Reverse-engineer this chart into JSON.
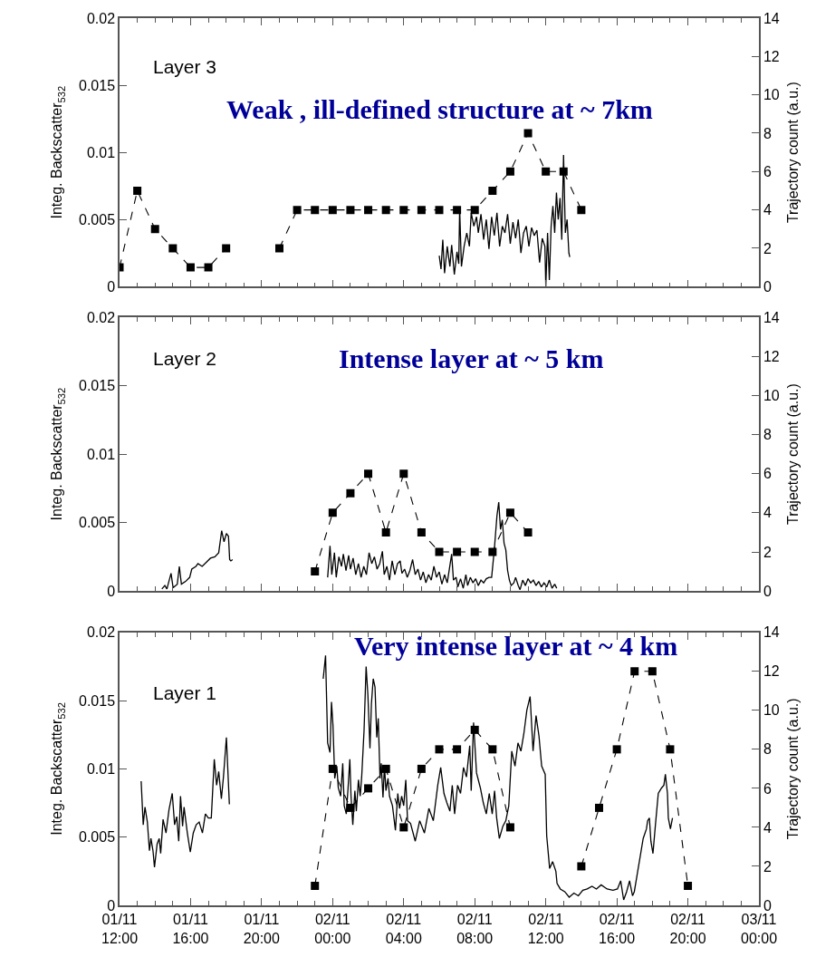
{
  "chart_data": [
    {
      "type": "line",
      "tick_labels": "y",
      "ylabel": "Integ. Backscatter$_{532}$",
      "y2label": "Trajectory count (a.u.)",
      "annotations": [
        "Layer 3",
        "Weak , ill-defined structure at ~ 7km"
      ],
      "xlim": [
        "--11-01T12:00",
        "--11-03T00:00"
      ],
      "xticks": [
        {
          "value": "--11-01T12:00",
          "label": "01/11\n12:00"
        },
        {
          "value": "--11-01T16:00",
          "label": "01/11\n16:00"
        },
        {
          "value": "--11-01T20:00",
          "label": "01/11\n20:00"
        },
        {
          "value": "--11-02T00:00",
          "label": "02/11\n00:00"
        },
        {
          "value": "--11-02T04:00",
          "label": "02/11\n04:00"
        },
        {
          "value": "--11-02T08:00",
          "label": "02/11\n08:00"
        },
        {
          "value": "--11-02T12:00",
          "label": "02/11\n12:00"
        },
        {
          "value": "--11-02T16:00",
          "label": "02/11\n16:00"
        },
        {
          "value": "--11-02T20:00",
          "label": "02/11\n20:00"
        },
        {
          "value": "--11-03T00:00",
          "label": "03/11\n00:00"
        }
      ],
      "ylim": [
        0,
        0.02
      ],
      "yticks": [
        0,
        0.005,
        0.01,
        0.015,
        0.02
      ],
      "y2lim": [
        0,
        14
      ],
      "y2ticks": [
        0,
        2,
        4,
        6,
        8,
        10,
        12,
        14
      ],
      "series": [
        {
          "type": "line",
          "color": "#000000",
          "marker": "none",
          "line_style": "solid",
          "x": [
            "--11-02T06:00",
            "--11-02T06:06",
            "--11-02T06:12",
            "--11-02T06:18",
            "--11-02T06:27",
            "--11-02T06:36",
            "--11-02T06:42",
            "--11-02T06:51",
            "--11-02T07:00",
            "--11-02T07:06",
            "--11-02T07:09",
            "--11-02T07:15",
            "--11-02T07:24",
            "--11-02T07:33",
            "--11-02T07:42",
            "--11-02T07:48",
            "--11-02T07:57",
            "--11-02T08:06",
            "--11-02T08:12",
            "--11-02T08:21",
            "--11-02T08:30",
            "--11-02T08:39",
            "--11-02T08:48",
            "--11-02T08:57",
            "--11-02T09:06",
            "--11-02T09:15",
            "--11-02T09:24",
            "--11-02T09:33",
            "--11-02T09:42",
            "--11-02T09:51",
            "--11-02T10:00",
            "--11-02T10:09",
            "--11-02T10:18",
            "--11-02T10:27",
            "--11-02T10:36",
            "--11-02T10:45",
            "--11-02T10:54",
            "--11-02T11:03",
            "--11-02T11:12",
            "--11-02T11:21",
            "--11-02T11:30",
            "--11-02T11:39",
            "--11-02T11:48",
            "--11-02T11:57",
            "--11-02T12:00",
            "--11-02T12:06",
            "--11-02T12:12",
            "--11-02T12:18",
            "--11-02T12:24",
            "--11-02T12:30",
            "--11-02T12:36",
            "--11-02T12:42",
            "--11-02T12:48",
            "--11-02T12:54",
            "--11-02T13:00",
            "--11-02T13:06",
            "--11-02T13:12",
            "--11-02T13:18",
            "--11-02T13:21"
          ],
          "values": [
            0.0023,
            0.0013,
            0.0035,
            0.001,
            0.003,
            0.0015,
            0.0031,
            0.0009,
            0.0026,
            0.0017,
            0.0058,
            0.0015,
            0.003,
            0.004,
            0.003,
            0.0055,
            0.0045,
            0.0052,
            0.004,
            0.0054,
            0.0035,
            0.005,
            0.0028,
            0.0052,
            0.0038,
            0.0055,
            0.003,
            0.0045,
            0.004,
            0.0054,
            0.0032,
            0.0048,
            0.0036,
            0.005,
            0.0025,
            0.004,
            0.0045,
            0.003,
            0.0044,
            0.0038,
            0.0042,
            0.0018,
            0.0036,
            0.003,
            0.0,
            0.004,
            0.0005,
            0.0045,
            0.006,
            0.004,
            0.007,
            0.005,
            0.0066,
            0.0035,
            0.0098,
            0.004,
            0.005,
            0.0025,
            0.0022
          ]
        },
        {
          "type": "line",
          "axis": "y2",
          "color": "#000000",
          "marker": "square",
          "line_style": "dashed",
          "x": [
            "--11-01T12:00",
            "--11-01T13:00",
            "--11-01T14:00",
            "--11-01T15:00",
            "--11-01T16:00",
            "--11-01T17:00",
            "--11-01T18:00",
            "--11-01T19:00",
            "--11-01T21:00",
            "--11-01T22:00",
            "--11-01T23:00",
            "--11-02T00:00",
            "--11-02T01:00",
            "--11-02T02:00",
            "--11-02T03:00",
            "--11-02T04:00",
            "--11-02T05:00",
            "--11-02T06:00",
            "--11-02T07:00",
            "--11-02T08:00",
            "--11-02T09:00",
            "--11-02T10:00",
            "--11-02T11:00",
            "--11-02T12:00",
            "--11-02T13:00",
            "--11-02T14:00"
          ],
          "values": [
            1,
            5,
            3,
            2,
            1,
            1,
            2,
            null,
            2,
            4,
            4,
            4,
            4,
            4,
            4,
            4,
            4,
            4,
            4,
            4,
            5,
            6,
            8,
            6,
            6,
            4
          ]
        }
      ]
    },
    {
      "type": "line",
      "tick_labels": "y",
      "ylabel": "Integ. Backscatter$_{532}$",
      "y2label": "Trajectory count (a.u.)",
      "annotations": [
        "Layer 2",
        "Intense layer at ~ 5 km"
      ],
      "xlim": [
        "--11-01T12:00",
        "--11-03T00:00"
      ],
      "xticks": [
        {
          "value": "--11-01T12:00",
          "label": "01/11\n12:00"
        },
        {
          "value": "--11-01T16:00",
          "label": "01/11\n16:00"
        },
        {
          "value": "--11-01T20:00",
          "label": "01/11\n20:00"
        },
        {
          "value": "--11-02T00:00",
          "label": "02/11\n00:00"
        },
        {
          "value": "--11-02T04:00",
          "label": "02/11\n04:00"
        },
        {
          "value": "--11-02T08:00",
          "label": "02/11\n08:00"
        },
        {
          "value": "--11-02T12:00",
          "label": "02/11\n12:00"
        },
        {
          "value": "--11-02T16:00",
          "label": "02/11\n16:00"
        },
        {
          "value": "--11-02T20:00",
          "label": "02/11\n20:00"
        },
        {
          "value": "--11-03T00:00",
          "label": "03/11\n00:00"
        }
      ],
      "ylim": [
        0,
        0.02
      ],
      "yticks": [
        0,
        0.005,
        0.01,
        0.015,
        0.02
      ],
      "y2lim": [
        0,
        14
      ],
      "y2ticks": [
        0,
        2,
        4,
        6,
        8,
        10,
        12,
        14
      ],
      "series": [
        {
          "type": "line",
          "color": "#000000",
          "marker": "none",
          "line_style": "solid",
          "x": [
            "--11-01T14:23",
            "--11-01T14:33",
            "--11-01T14:40",
            "--11-01T14:54",
            "--11-01T15:01",
            "--11-01T15:15",
            "--11-01T15:22",
            "--11-01T15:29",
            "--11-01T15:43",
            "--11-01T15:57",
            "--11-01T16:04",
            "--11-01T16:18",
            "--11-01T16:25",
            "--11-01T16:39",
            "--11-01T16:53",
            "--11-01T17:07",
            "--11-01T17:22",
            "--11-01T17:35",
            "--11-01T17:45",
            "--11-01T17:53",
            "--11-01T18:01",
            "--11-01T18:08",
            "--11-01T18:12",
            "--11-01T18:16",
            "--11-01T18:22",
            "--11-01T20:00",
            "--11-01T23:43",
            "--11-01T23:51",
            "--11-01T23:57",
            "--11-02T00:06",
            "--11-02T00:12",
            "--11-02T00:21",
            "--11-02T00:30",
            "--11-02T00:36",
            "--11-02T00:45",
            "--11-02T00:54",
            "--11-02T01:00",
            "--11-02T01:09",
            "--11-02T01:18",
            "--11-02T01:27",
            "--11-02T01:36",
            "--11-02T01:45",
            "--11-02T01:54",
            "--11-02T02:03",
            "--11-02T02:12",
            "--11-02T02:21",
            "--11-02T02:30",
            "--11-02T02:39",
            "--11-02T02:48",
            "--11-02T02:54",
            "--11-02T03:03",
            "--11-02T03:12",
            "--11-02T03:21",
            "--11-02T03:30",
            "--11-02T03:39",
            "--11-02T03:48",
            "--11-02T03:54",
            "--11-02T04:03",
            "--11-02T04:12",
            "--11-02T04:21",
            "--11-02T04:30",
            "--11-02T04:39",
            "--11-02T04:48",
            "--11-02T04:57",
            "--11-02T05:06",
            "--11-02T05:15",
            "--11-02T05:24",
            "--11-02T05:33",
            "--11-02T05:42",
            "--11-02T05:51",
            "--11-02T06:00",
            "--11-02T06:09",
            "--11-02T06:18",
            "--11-02T06:27",
            "--11-02T06:42",
            "--11-02T06:48",
            "--11-02T06:57",
            "--11-02T07:03",
            "--11-02T07:12",
            "--11-02T07:21",
            "--11-02T07:30",
            "--11-02T07:36",
            "--11-02T07:45",
            "--11-02T07:54",
            "--11-02T08:03",
            "--11-02T08:12",
            "--11-02T08:21",
            "--11-02T08:30",
            "--11-02T08:39",
            "--11-02T08:48",
            "--11-02T08:57",
            "--11-02T09:06",
            "--11-02T09:15",
            "--11-02T09:21",
            "--11-02T09:27",
            "--11-02T09:33",
            "--11-02T09:39",
            "--11-02T09:45",
            "--11-02T09:51",
            "--11-02T09:57",
            "--11-02T10:03",
            "--11-02T10:12",
            "--11-02T10:18",
            "--11-02T10:27",
            "--11-02T10:33",
            "--11-02T10:42",
            "--11-02T10:51",
            "--11-02T11:00",
            "--11-02T11:09",
            "--11-02T11:18",
            "--11-02T11:27",
            "--11-02T11:36",
            "--11-02T11:45",
            "--11-02T11:54",
            "--11-02T12:03",
            "--11-02T12:12",
            "--11-02T12:21",
            "--11-02T12:30",
            "--11-02T12:37"
          ],
          "values": [
            0.00015,
            0.0004,
            0.00015,
            0.0013,
            0.00024,
            0.0005,
            0.0018,
            0.0005,
            0.0007,
            0.001,
            0.0016,
            0.0018,
            0.002,
            0.0018,
            0.0021,
            0.0024,
            0.0025,
            0.0028,
            0.0044,
            0.0036,
            0.0042,
            0.004,
            0.0023,
            0.0022,
            0.0023,
            null,
            0.001,
            0.0033,
            0.0012,
            0.0028,
            0.001,
            0.0025,
            0.0018,
            0.0027,
            0.0015,
            0.0026,
            0.0016,
            0.0024,
            0.0012,
            0.002,
            0.001,
            0.0018,
            0.0012,
            0.0028,
            0.002,
            0.0025,
            0.0016,
            0.002,
            0.0029,
            0.0012,
            0.0018,
            0.0008,
            0.0022,
            0.0012,
            0.002,
            0.0022,
            0.0013,
            0.0016,
            0.001,
            0.0015,
            0.0023,
            0.0012,
            0.0016,
            0.0008,
            0.0014,
            0.0006,
            0.0012,
            0.0008,
            0.0018,
            0.001,
            0.0014,
            0.0005,
            0.0012,
            0.0006,
            0.0027,
            0.0008,
            0.001,
            0.0003,
            0.0009,
            0.0002,
            0.0012,
            0.0004,
            0.001,
            0.0006,
            0.0009,
            0.0004,
            0.0008,
            0.0006,
            0.0009,
            0.001,
            0.001,
            0.003,
            0.0055,
            0.0065,
            0.0045,
            0.0052,
            0.0035,
            0.003,
            0.0015,
            0.0008,
            0.0004,
            0.0006,
            0.001,
            0.0004,
            0.0001,
            0.0008,
            0.0004,
            0.0009,
            0.0006,
            0.0008,
            0.0004,
            0.0007,
            0.0003,
            0.0006,
            0.0003,
            0.0008,
            0.0002,
            0.0005,
            0.0002
          ]
        },
        {
          "type": "line",
          "axis": "y2",
          "color": "#000000",
          "marker": "square",
          "line_style": "dashed",
          "x": [
            "--11-01T23:00",
            "--11-02T00:00",
            "--11-02T01:00",
            "--11-02T02:00",
            "--11-02T03:00",
            "--11-02T04:00",
            "--11-02T05:00",
            "--11-02T06:00",
            "--11-02T07:00",
            "--11-02T08:00",
            "--11-02T09:00",
            "--11-02T10:00",
            "--11-02T11:00"
          ],
          "values": [
            1,
            4,
            5,
            6,
            3,
            6,
            3,
            2,
            2,
            2,
            2,
            4,
            3
          ]
        }
      ]
    },
    {
      "type": "line",
      "ylabel": "Integ. Backscatter$_{532}$",
      "y2label": "Trajectory count (a.u.)",
      "annotations": [
        "Layer 1",
        "Very intense layer at ~ 4 km"
      ],
      "xlim": [
        "--11-01T12:00",
        "--11-03T00:00"
      ],
      "xticks": [
        {
          "value": "--11-01T12:00",
          "label": "01/11\n12:00"
        },
        {
          "value": "--11-01T16:00",
          "label": "01/11\n16:00"
        },
        {
          "value": "--11-01T20:00",
          "label": "01/11\n20:00"
        },
        {
          "value": "--11-02T00:00",
          "label": "02/11\n00:00"
        },
        {
          "value": "--11-02T04:00",
          "label": "02/11\n04:00"
        },
        {
          "value": "--11-02T08:00",
          "label": "02/11\n08:00"
        },
        {
          "value": "--11-02T12:00",
          "label": "02/11\n12:00"
        },
        {
          "value": "--11-02T16:00",
          "label": "02/11\n16:00"
        },
        {
          "value": "--11-02T20:00",
          "label": "02/11\n20:00"
        },
        {
          "value": "--11-03T00:00",
          "label": "03/11\n00:00"
        }
      ],
      "ylim": [
        0,
        0.02
      ],
      "yticks": [
        0,
        0.005,
        0.01,
        0.015,
        0.02
      ],
      "y2lim": [
        0,
        14
      ],
      "y2ticks": [
        0,
        2,
        4,
        6,
        8,
        10,
        12,
        14
      ],
      "series": [
        {
          "type": "line",
          "color": "#000000",
          "marker": "none",
          "line_style": "solid",
          "x": [
            "--11-01T13:13",
            "--11-01T13:20",
            "--11-01T13:26",
            "--11-01T13:34",
            "--11-01T13:41",
            "--11-01T13:46",
            "--11-01T13:53",
            "--11-01T13:58",
            "--11-01T14:07",
            "--11-01T14:14",
            "--11-01T14:19",
            "--11-01T14:27",
            "--11-01T14:37",
            "--11-01T14:47",
            "--11-01T14:58",
            "--11-01T15:06",
            "--11-01T15:13",
            "--11-01T15:20",
            "--11-01T15:26",
            "--11-01T15:33",
            "--11-01T15:38",
            "--11-01T15:49",
            "--11-01T15:59",
            "--11-01T16:09",
            "--11-01T16:19",
            "--11-01T16:29",
            "--11-01T16:40",
            "--11-01T16:50",
            "--11-01T17:00",
            "--11-01T17:10",
            "--11-01T17:20",
            "--11-01T17:28",
            "--11-01T17:35",
            "--11-01T17:44",
            "--11-01T17:51",
            "--11-01T18:01",
            "--11-01T18:11",
            "--11-01T20:00",
            "--11-01T23:28",
            "--11-01T23:36",
            "--11-01T23:43",
            "--11-01T23:51",
            "--11-01T23:56",
            "--11-02T00:01",
            "--11-02T00:07",
            "--11-02T00:14",
            "--11-02T00:19",
            "--11-02T00:27",
            "--11-02T00:34",
            "--11-02T00:39",
            "--11-02T00:46",
            "--11-02T00:52",
            "--11-02T00:58",
            "--11-02T01:02",
            "--11-02T01:08",
            "--11-02T01:15",
            "--11-02T01:20",
            "--11-02T01:27",
            "--11-02T01:33",
            "--11-02T01:38",
            "--11-02T01:46",
            "--11-02T01:53",
            "--11-02T01:59",
            "--11-02T02:06",
            "--11-02T02:11",
            "--11-02T02:17",
            "--11-02T02:23",
            "--11-02T02:29",
            "--11-02T02:34",
            "--11-02T02:40",
            "--11-02T02:44",
            "--11-02T02:50",
            "--11-02T02:55",
            "--11-02T03:00",
            "--11-02T03:07",
            "--11-02T03:12",
            "--11-02T03:22",
            "--11-02T03:32",
            "--11-02T03:40",
            "--11-02T03:46",
            "--11-02T03:53",
            "--11-02T04:00",
            "--11-02T04:07",
            "--11-02T04:13",
            "--11-02T04:23",
            "--11-02T04:39",
            "--11-02T04:54",
            "--11-02T05:10",
            "--11-02T05:25",
            "--11-02T05:40",
            "--11-02T05:55",
            "--11-02T06:05",
            "--11-02T06:16",
            "--11-02T06:26",
            "--11-02T06:36",
            "--11-02T06:44",
            "--11-02T06:52",
            "--11-02T07:02",
            "--11-02T07:12",
            "--11-02T07:22",
            "--11-02T07:32",
            "--11-02T07:43",
            "--11-02T07:48",
            "--11-02T07:56",
            "--11-02T08:06",
            "--11-02T08:19",
            "--11-02T08:29",
            "--11-02T08:39",
            "--11-02T08:49",
            "--11-02T08:59",
            "--11-02T09:07",
            "--11-02T09:14",
            "--11-02T09:23",
            "--11-02T09:35",
            "--11-02T09:45",
            "--11-02T09:55",
            "--11-02T10:05",
            "--11-02T10:16",
            "--11-02T10:26",
            "--11-02T10:36",
            "--11-02T10:46",
            "--11-02T10:56",
            "--11-02T11:07",
            "--11-02T11:17",
            "--11-02T11:27",
            "--11-02T11:37",
            "--11-02T11:46",
            "--11-02T11:58",
            "--11-02T12:03",
            "--11-02T12:13",
            "--11-02T12:23",
            "--11-02T12:34",
            "--11-02T12:38",
            "--11-02T12:49",
            "--11-02T13:04",
            "--11-02T13:19",
            "--11-02T13:35",
            "--11-02T13:50",
            "--11-02T14:05",
            "--11-02T14:20",
            "--11-02T14:36",
            "--11-02T14:51",
            "--11-02T15:07",
            "--11-02T15:27",
            "--11-02T15:47",
            "--11-02T16:02",
            "--11-02T16:13",
            "--11-02T16:23",
            "--11-02T16:33",
            "--11-02T16:43",
            "--11-02T16:53",
            "--11-02T16:59",
            "--11-02T17:09",
            "--11-02T17:19",
            "--11-02T17:29",
            "--11-02T17:40",
            "--11-02T17:44",
            "--11-02T17:50",
            "--11-02T17:55",
            "--11-02T18:02",
            "--11-02T18:10",
            "--11-02T18:20",
            "--11-02T18:31",
            "--11-02T18:39",
            "--11-02T18:44",
            "--11-02T18:51",
            "--11-02T18:54",
            "--11-02T19:01",
            "--11-02T19:08"
          ],
          "values": [
            0.0091,
            0.0059,
            0.0072,
            0.0061,
            0.004,
            0.0049,
            0.004,
            0.0028,
            0.0045,
            0.0049,
            0.0038,
            0.0063,
            0.0053,
            0.007,
            0.0082,
            0.0059,
            0.0065,
            0.0047,
            0.008,
            0.0058,
            0.0072,
            0.0053,
            0.0039,
            0.0053,
            0.0059,
            0.0061,
            0.0053,
            0.0067,
            0.0064,
            0.0064,
            0.0107,
            0.0088,
            0.0098,
            0.0078,
            0.0094,
            0.0123,
            0.0074,
            null,
            0.0166,
            0.0183,
            0.0119,
            0.0112,
            0.0149,
            0.0132,
            0.0093,
            0.0102,
            0.0086,
            0.008,
            0.0104,
            0.0073,
            0.0067,
            0.0086,
            0.0107,
            0.008,
            0.0059,
            0.0084,
            0.0069,
            0.0092,
            0.008,
            0.0094,
            0.0128,
            0.0175,
            0.0154,
            0.0115,
            0.0148,
            0.0166,
            0.016,
            0.0123,
            0.0137,
            0.0093,
            0.0104,
            0.0079,
            0.0102,
            0.0084,
            0.0093,
            0.008,
            0.0073,
            0.0055,
            0.0082,
            0.0071,
            0.008,
            0.0073,
            0.0092,
            0.0062,
            0.006,
            0.0047,
            0.0062,
            0.0053,
            0.0071,
            0.0062,
            0.0088,
            0.0101,
            0.0082,
            0.0075,
            0.0069,
            0.0088,
            0.0067,
            0.0088,
            0.0082,
            0.0101,
            0.0094,
            0.0117,
            0.0084,
            0.0134,
            0.0097,
            0.0086,
            0.0075,
            0.0067,
            0.0082,
            0.0067,
            0.0084,
            0.0064,
            0.0049,
            0.0058,
            0.0062,
            0.0073,
            0.0113,
            0.0102,
            0.0119,
            0.0113,
            0.0126,
            0.0143,
            0.0153,
            0.0113,
            0.0139,
            0.0124,
            0.0102,
            0.0096,
            0.0051,
            0.0027,
            0.0032,
            0.0025,
            0.0016,
            0.0012,
            0.001,
            0.0006,
            0.0009,
            0.0007,
            0.0011,
            0.0012,
            0.0014,
            0.0012,
            0.0015,
            0.0012,
            0.0011,
            0.0012,
            0.0018,
            0.0004,
            0.001,
            0.0018,
            0.0007,
            0.001,
            0.0023,
            0.0036,
            0.0049,
            0.0056,
            0.0062,
            0.0064,
            0.0047,
            0.0038,
            0.0058,
            0.0082,
            0.0086,
            0.0088,
            0.0096,
            0.0082,
            0.0064,
            0.0056,
            0.0064
          ]
        },
        {
          "type": "line",
          "axis": "y2",
          "color": "#000000",
          "marker": "square",
          "line_style": "dashed",
          "x": [
            "--11-01T23:00",
            "--11-02T00:00",
            "--11-02T01:00",
            "--11-02T02:00",
            "--11-02T03:00",
            "--11-02T04:00",
            "--11-02T05:00",
            "--11-02T06:00",
            "--11-02T07:00",
            "--11-02T08:00",
            "--11-02T09:00",
            "--11-02T10:00",
            "--11-02T11:00",
            "--11-02T14:00",
            "--11-02T15:00",
            "--11-02T16:00",
            "--11-02T17:00",
            "--11-02T18:00",
            "--11-02T19:00",
            "--11-02T20:00"
          ],
          "values": [
            1,
            7,
            5,
            6,
            7,
            4,
            7,
            8,
            8,
            9,
            8,
            4,
            null,
            2,
            5,
            8,
            12,
            12,
            8,
            1
          ]
        }
      ]
    }
  ]
}
